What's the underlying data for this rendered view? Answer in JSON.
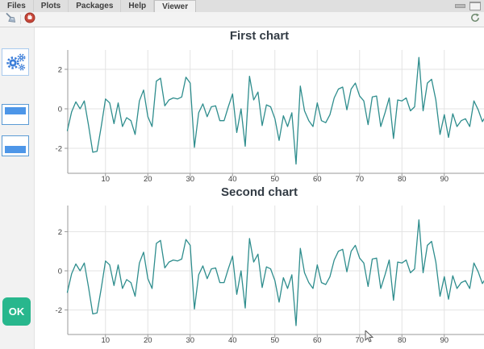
{
  "window": {
    "tabs": [
      {
        "label": "Files"
      },
      {
        "label": "Plots"
      },
      {
        "label": "Packages"
      },
      {
        "label": "Help"
      },
      {
        "label": "Viewer"
      }
    ],
    "active_tab": "Viewer"
  },
  "toolbar": {
    "buttons": [
      {
        "name": "clear-viewer",
        "icon": "broom-icon"
      },
      {
        "name": "stop-app",
        "icon": "stop-icon"
      },
      {
        "name": "refresh-viewer",
        "icon": "refresh-icon"
      }
    ]
  },
  "sidebar": {
    "items": [
      {
        "name": "settings",
        "icon": "gears-icon"
      },
      {
        "name": "layout-top",
        "icon": "layout-top-icon"
      },
      {
        "name": "layout-bottom",
        "icon": "layout-bottom-icon"
      }
    ],
    "ok_label": "OK"
  },
  "colors": {
    "accent_blue": "#4d96e8",
    "ok_green": "#28b78d",
    "line_teal": "#2e8d8d",
    "title_text": "#333c45",
    "grid": "#e3e3e3",
    "axis": "#9a9a9a"
  },
  "chart_data": [
    {
      "type": "line",
      "title": "First chart",
      "xlabel": "",
      "ylabel": "",
      "x_ticks": [
        10,
        20,
        30,
        40,
        50,
        60,
        70,
        80,
        90
      ],
      "y_ticks": [
        2,
        0,
        -2
      ],
      "xlim": [
        1,
        100
      ],
      "ylim": [
        -3.3,
        3.0
      ],
      "grid": true,
      "legend": "none",
      "line_color": "#2e8d8d",
      "x_start": 1,
      "x_step": 1,
      "values": [
        -1.1,
        -0.15,
        0.35,
        0,
        0.4,
        -0.85,
        -2.2,
        -2.15,
        -0.9,
        0.5,
        0.3,
        -0.75,
        0.3,
        -0.9,
        -0.45,
        -0.6,
        -1.3,
        0.4,
        0.95,
        -0.4,
        -0.9,
        1.4,
        1.55,
        0.15,
        0.45,
        0.55,
        0.5,
        0.6,
        1.6,
        1.3,
        -1.95,
        -0.2,
        0.25,
        -0.4,
        0.1,
        0.15,
        -0.6,
        -0.6,
        0.1,
        0.75,
        -1.2,
        0,
        -1.9,
        1.65,
        0.45,
        0.85,
        -0.85,
        0.2,
        0.1,
        -0.5,
        -1.6,
        -0.35,
        -0.9,
        -0.2,
        -2.8,
        1.15,
        -0.1,
        -0.6,
        -0.9,
        0.3,
        -0.6,
        -0.7,
        -0.3,
        0.55,
        1,
        1.1,
        -0.05,
        1,
        1.3,
        0.65,
        0.4,
        -0.8,
        0.6,
        0.65,
        -0.9,
        -0.2,
        0.55,
        -1.5,
        0.45,
        0.4,
        0.55,
        -0.1,
        0.1,
        2.6,
        -0.1,
        1.3,
        1.5,
        0.45,
        -1.3,
        -0.3,
        -1.45,
        -0.25,
        -0.9,
        -0.6,
        -0.5,
        -0.9,
        0.4,
        -0.05,
        -0.65,
        -0.3
      ]
    },
    {
      "type": "line",
      "title": "Second chart",
      "xlabel": "",
      "ylabel": "",
      "x_ticks": [
        10,
        20,
        30,
        40,
        50,
        60,
        70,
        80,
        90
      ],
      "y_ticks": [
        2,
        0,
        -2
      ],
      "xlim": [
        1,
        100
      ],
      "ylim": [
        -3.3,
        3.0
      ],
      "grid": true,
      "legend": "none",
      "line_color": "#2e8d8d",
      "x_start": 1,
      "x_step": 1,
      "values": [
        -1.1,
        -0.15,
        0.35,
        0,
        0.4,
        -0.85,
        -2.2,
        -2.15,
        -0.9,
        0.5,
        0.3,
        -0.75,
        0.3,
        -0.9,
        -0.45,
        -0.6,
        -1.3,
        0.4,
        0.95,
        -0.4,
        -0.9,
        1.4,
        1.55,
        0.15,
        0.45,
        0.55,
        0.5,
        0.6,
        1.6,
        1.3,
        -1.95,
        -0.2,
        0.25,
        -0.4,
        0.1,
        0.15,
        -0.6,
        -0.6,
        0.1,
        0.75,
        -1.2,
        0,
        -1.9,
        1.65,
        0.45,
        0.85,
        -0.85,
        0.2,
        0.1,
        -0.5,
        -1.6,
        -0.35,
        -0.9,
        -0.2,
        -2.8,
        1.15,
        -0.1,
        -0.6,
        -0.9,
        0.3,
        -0.6,
        -0.7,
        -0.3,
        0.55,
        1,
        1.1,
        -0.05,
        1,
        1.3,
        0.65,
        0.4,
        -0.8,
        0.6,
        0.65,
        -0.9,
        -0.2,
        0.55,
        -1.5,
        0.45,
        0.4,
        0.55,
        -0.1,
        0.1,
        2.6,
        -0.1,
        1.3,
        1.5,
        0.45,
        -1.3,
        -0.3,
        -1.45,
        -0.25,
        -0.9,
        -0.6,
        -0.5,
        -0.9,
        0.4,
        -0.05,
        -0.65,
        -0.3
      ]
    }
  ]
}
